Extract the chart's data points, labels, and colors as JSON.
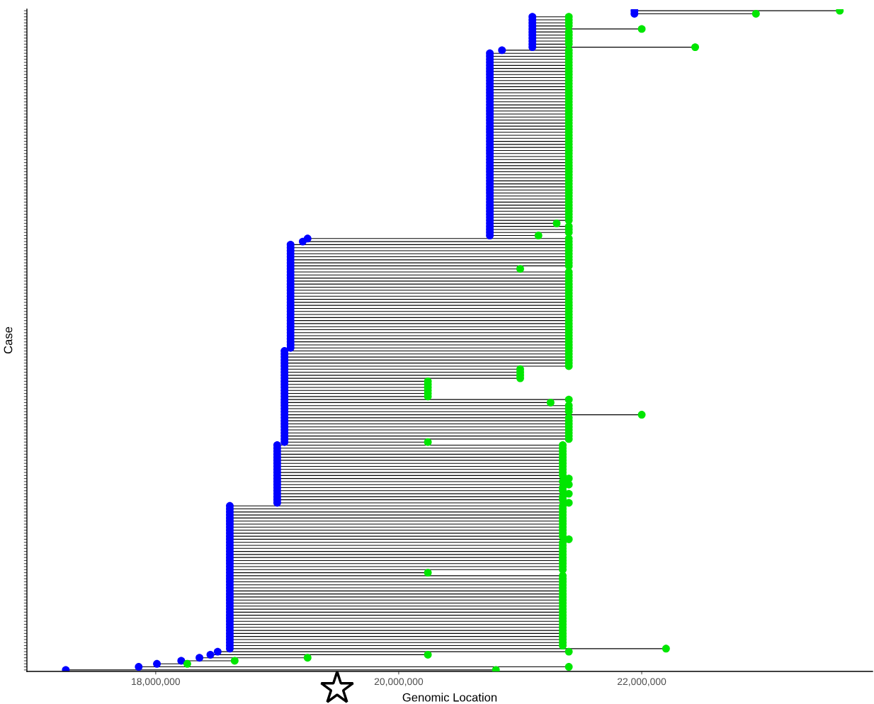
{
  "chart_data": {
    "type": "scatter",
    "orientation": "horizontal",
    "xlabel": "Genomic Location",
    "ylabel": "Case",
    "marker": "circle",
    "tick_labels": "x",
    "grid": false,
    "xlim": [
      16940000,
      23900000
    ],
    "xticks": [
      {
        "value": 18000000,
        "label": "18,000,000"
      },
      {
        "value": 20000000,
        "label": "20,000,000"
      },
      {
        "value": 22000000,
        "label": "22,000,000"
      }
    ],
    "categories": [
      null,
      null,
      null,
      null,
      null,
      null,
      null,
      null,
      null,
      null,
      null,
      null,
      null,
      null,
      null,
      null,
      null,
      null,
      null,
      null,
      null,
      null,
      null,
      null,
      null,
      null,
      null,
      null,
      null,
      null,
      null,
      null,
      null,
      null,
      null,
      null,
      null,
      null,
      null,
      null,
      null,
      null,
      null,
      null,
      null,
      null,
      null,
      null,
      null,
      null,
      null,
      null,
      null,
      null,
      null,
      null,
      null,
      null,
      null,
      null,
      null,
      null,
      null,
      null,
      null,
      null,
      null,
      null,
      null,
      null,
      null,
      null,
      null,
      null,
      null,
      null,
      null,
      null,
      null,
      null,
      null,
      null,
      null,
      null,
      null,
      null,
      null,
      null,
      null,
      null,
      null,
      null,
      null,
      null,
      null,
      null,
      null,
      null,
      null,
      null,
      null,
      null,
      null,
      null,
      null,
      null,
      null,
      null,
      null,
      null,
      null,
      null,
      null,
      null,
      null,
      null,
      null,
      null,
      null,
      null,
      null,
      null,
      null,
      null,
      null,
      null,
      null,
      null,
      null,
      null,
      null,
      null,
      null,
      null,
      null,
      null,
      null,
      null,
      null,
      null,
      null,
      null,
      null,
      null,
      null,
      null,
      null,
      null,
      null,
      null,
      null,
      null,
      null,
      null,
      null,
      null,
      null,
      null,
      null,
      null,
      null,
      null,
      null,
      null,
      null,
      null,
      null,
      null,
      null,
      null,
      null,
      null,
      null,
      null,
      null,
      null,
      null,
      null,
      null,
      null,
      null,
      null,
      null,
      null,
      null,
      null,
      null,
      null,
      null,
      null,
      null,
      null,
      null,
      null,
      null,
      null,
      null,
      null,
      null,
      null,
      null,
      null,
      null,
      null,
      null,
      null,
      null,
      null,
      null,
      null,
      null,
      null,
      null,
      null,
      null,
      null,
      null,
      null
    ],
    "series": [
      {
        "color": "#0000ff",
        "values": [
          21940000,
          21940000,
          21100000,
          21100000,
          21100000,
          21100000,
          21100000,
          21100000,
          21100000,
          21100000,
          21100000,
          21100000,
          21100000,
          20850000,
          20750000,
          20750000,
          20750000,
          20750000,
          20750000,
          20750000,
          20750000,
          20750000,
          20750000,
          20750000,
          20750000,
          20750000,
          20750000,
          20750000,
          20750000,
          20750000,
          20750000,
          20750000,
          20750000,
          20750000,
          20750000,
          20750000,
          20750000,
          20750000,
          20750000,
          20750000,
          20750000,
          20750000,
          20750000,
          20750000,
          20750000,
          20750000,
          20750000,
          20750000,
          20750000,
          20750000,
          20750000,
          20750000,
          20750000,
          20750000,
          20750000,
          20750000,
          20750000,
          20750000,
          20750000,
          20750000,
          20750000,
          20750000,
          20750000,
          20750000,
          20750000,
          20750000,
          20750000,
          20750000,
          20750000,
          20750000,
          20750000,
          20750000,
          20750000,
          20750000,
          20750000,
          19250000,
          19210000,
          19110000,
          19110000,
          19110000,
          19110000,
          19110000,
          19110000,
          19110000,
          19110000,
          19110000,
          19110000,
          19110000,
          19110000,
          19110000,
          19110000,
          19110000,
          19110000,
          19110000,
          19110000,
          19110000,
          19110000,
          19110000,
          19110000,
          19110000,
          19110000,
          19110000,
          19110000,
          19110000,
          19110000,
          19110000,
          19110000,
          19110000,
          19110000,
          19110000,
          19110000,
          19110000,
          19060000,
          19060000,
          19060000,
          19060000,
          19060000,
          19060000,
          19060000,
          19060000,
          19060000,
          19060000,
          19060000,
          19060000,
          19060000,
          19060000,
          19060000,
          19060000,
          19060000,
          19060000,
          19060000,
          19060000,
          19060000,
          19060000,
          19060000,
          19060000,
          19060000,
          19060000,
          19060000,
          19060000,
          19060000,
          19060000,
          19060000,
          19000000,
          19000000,
          19000000,
          19000000,
          19000000,
          19000000,
          19000000,
          19000000,
          19000000,
          19000000,
          19000000,
          19000000,
          19000000,
          19000000,
          19000000,
          19000000,
          19000000,
          19000000,
          19000000,
          19000000,
          18610000,
          18610000,
          18610000,
          18610000,
          18610000,
          18610000,
          18610000,
          18610000,
          18610000,
          18610000,
          18610000,
          18610000,
          18610000,
          18610000,
          18610000,
          18610000,
          18610000,
          18610000,
          18610000,
          18610000,
          18610000,
          18610000,
          18610000,
          18610000,
          18610000,
          18610000,
          18610000,
          18610000,
          18610000,
          18610000,
          18610000,
          18610000,
          18610000,
          18610000,
          18610000,
          18610000,
          18610000,
          18610000,
          18610000,
          18610000,
          18610000,
          18610000,
          18610000,
          18610000,
          18610000,
          18610000,
          18610000,
          18610000,
          18510000,
          18450000,
          18360000,
          18210000,
          18010000,
          17860000,
          17260000
        ]
      },
      {
        "color": "#00e600",
        "values": [
          23630000,
          22940000,
          21400000,
          21400000,
          21400000,
          21400000,
          22000000,
          21400000,
          21400000,
          21400000,
          21400000,
          21400000,
          22440000,
          21400000,
          21400000,
          21400000,
          21400000,
          21400000,
          21400000,
          21400000,
          21400000,
          21400000,
          21400000,
          21400000,
          21400000,
          21400000,
          21400000,
          21400000,
          21400000,
          21400000,
          21400000,
          21400000,
          21400000,
          21400000,
          21400000,
          21400000,
          21400000,
          21400000,
          21400000,
          21400000,
          21400000,
          21400000,
          21400000,
          21400000,
          21400000,
          21400000,
          21400000,
          21400000,
          21400000,
          21400000,
          21400000,
          21400000,
          21400000,
          21400000,
          21400000,
          21400000,
          21400000,
          21400000,
          21400000,
          21400000,
          21400000,
          21400000,
          21400000,
          21400000,
          21400000,
          21400000,
          21400000,
          21400000,
          21400000,
          21400000,
          21300000,
          21400000,
          21400000,
          21400000,
          21150000,
          21400000,
          21400000,
          21400000,
          21400000,
          21400000,
          21400000,
          21400000,
          21400000,
          21400000,
          21400000,
          21000000,
          21400000,
          21400000,
          21400000,
          21400000,
          21400000,
          21400000,
          21400000,
          21400000,
          21400000,
          21400000,
          21400000,
          21400000,
          21400000,
          21400000,
          21400000,
          21400000,
          21400000,
          21400000,
          21400000,
          21400000,
          21400000,
          21400000,
          21400000,
          21400000,
          21400000,
          21400000,
          21400000,
          21400000,
          21400000,
          21400000,
          21400000,
          21400000,
          21000000,
          21000000,
          21000000,
          21000000,
          20240000,
          20240000,
          20240000,
          20240000,
          20240000,
          20240000,
          21400000,
          21250000,
          21400000,
          21400000,
          21400000,
          22000000,
          21400000,
          21400000,
          21400000,
          21400000,
          21400000,
          21400000,
          21400000,
          21400000,
          20240000,
          21350000,
          21350000,
          21350000,
          21350000,
          21350000,
          21350000,
          21350000,
          21350000,
          21350000,
          21350000,
          21350000,
          21400000,
          21350000,
          21400000,
          21350000,
          21350000,
          21400000,
          21350000,
          21350000,
          21400000,
          21350000,
          21350000,
          21350000,
          21350000,
          21350000,
          21350000,
          21350000,
          21350000,
          21350000,
          21350000,
          21350000,
          21400000,
          21350000,
          21350000,
          21350000,
          21350000,
          21350000,
          21350000,
          21350000,
          21350000,
          21350000,
          21350000,
          20240000,
          21350000,
          21350000,
          21350000,
          21350000,
          21350000,
          21350000,
          21350000,
          21350000,
          21350000,
          21350000,
          21350000,
          21350000,
          21350000,
          21350000,
          21350000,
          21350000,
          21350000,
          21350000,
          21350000,
          21350000,
          21350000,
          21350000,
          21350000,
          21350000,
          22200000,
          21400000,
          20240000,
          19250000,
          18650000,
          18260000,
          21400000,
          20800000
        ]
      }
    ]
  }
}
